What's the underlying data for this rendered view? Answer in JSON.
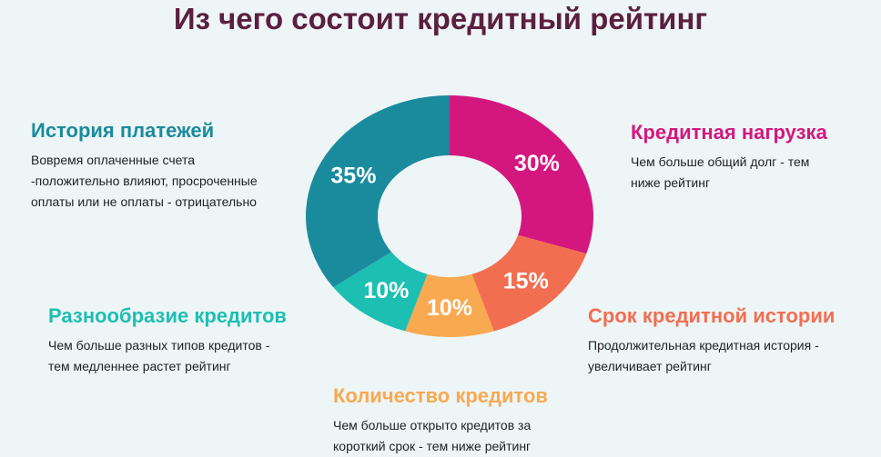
{
  "chart_data": {
    "type": "pie",
    "title": "Из чего состоит кредитный рейтинг",
    "donut": true,
    "start": "top",
    "direction": "clockwise",
    "slices": [
      {
        "name": "Кредитная нагрузка",
        "value": 30,
        "label": "30%",
        "color": "#d4177f",
        "desc": [
          "Чем больше общий долг - тем",
          "ниже рейтинг"
        ]
      },
      {
        "name": "Срок кредитной истории",
        "value": 15,
        "label": "15%",
        "color": "#f26e50",
        "desc": [
          "Продолжительная кредитная история  -",
          "увеличивает рейтинг"
        ]
      },
      {
        "name": "Количество кредитов",
        "value": 10,
        "label": "10%",
        "color": "#f9a94f",
        "desc": [
          "Чем больше открыто кредитов за",
          "короткий срок - тем ниже рейтинг"
        ]
      },
      {
        "name": "Разнообразие кредитов",
        "value": 10,
        "label": "10%",
        "color": "#1dbfb3",
        "desc": [
          "Чем больше разных типов кредитов  -",
          "тем медленнее растет рейтинг"
        ]
      },
      {
        "name": "История платежей",
        "value": 35,
        "label": "35%",
        "color": "#1a8b9d",
        "desc": [
          "Вовремя оплаченные счета",
          "-положительно влияют, просроченные",
          "оплаты или не оплаты - отрицательно"
        ]
      }
    ]
  }
}
